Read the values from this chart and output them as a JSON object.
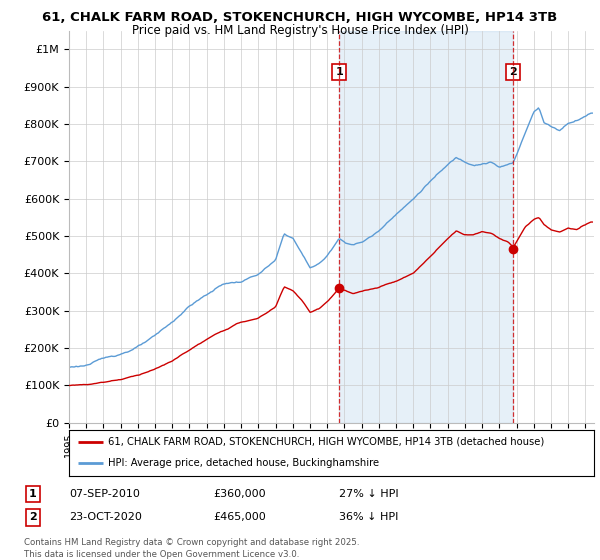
{
  "title1": "61, CHALK FARM ROAD, STOKENCHURCH, HIGH WYCOMBE, HP14 3TB",
  "title2": "Price paid vs. HM Land Registry's House Price Index (HPI)",
  "xlim_start": 1995.0,
  "xlim_end": 2025.5,
  "ylim": [
    0,
    1050000
  ],
  "yticks": [
    0,
    100000,
    200000,
    300000,
    400000,
    500000,
    600000,
    700000,
    800000,
    900000,
    1000000
  ],
  "ytick_labels": [
    "£0",
    "£100K",
    "£200K",
    "£300K",
    "£400K",
    "£500K",
    "£600K",
    "£700K",
    "£800K",
    "£900K",
    "£1M"
  ],
  "hpi_color": "#5b9bd5",
  "hpi_fill_color": "#ddeeff",
  "price_color": "#cc0000",
  "sale1_date": 2010.69,
  "sale1_price": 360000,
  "sale2_date": 2020.81,
  "sale2_price": 465000,
  "legend_line1": "61, CHALK FARM ROAD, STOKENCHURCH, HIGH WYCOMBE, HP14 3TB (detached house)",
  "legend_line2": "HPI: Average price, detached house, Buckinghamshire",
  "table_row1": [
    "1",
    "07-SEP-2010",
    "£360,000",
    "27% ↓ HPI"
  ],
  "table_row2": [
    "2",
    "23-OCT-2020",
    "£465,000",
    "36% ↓ HPI"
  ],
  "footnote": "Contains HM Land Registry data © Crown copyright and database right 2025.\nThis data is licensed under the Open Government Licence v3.0.",
  "background_color": "#ffffff",
  "grid_color": "#cccccc"
}
